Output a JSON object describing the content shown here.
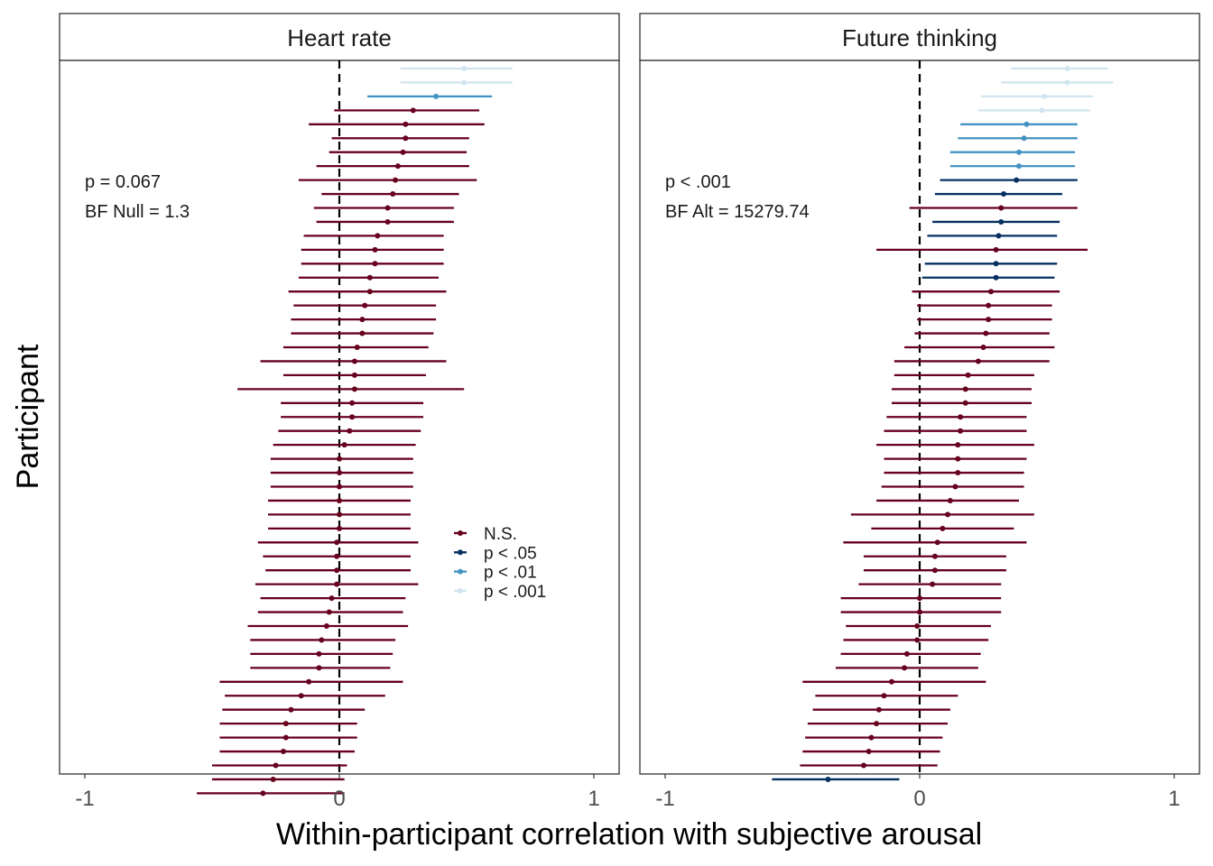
{
  "chart_data": {
    "type": "forest",
    "xlabel": "Within-participant correlation with subjective arousal",
    "ylabel": "Participant",
    "xlim": [
      -1,
      1
    ],
    "xticks": [
      "-1",
      "0",
      "1"
    ],
    "reference_line": 0,
    "legend": {
      "placement": "inside-left-panel",
      "entries": [
        {
          "label": "N.S.",
          "color": "#67001f"
        },
        {
          "label": "p < .05",
          "color": "#053061"
        },
        {
          "label": "p < .01",
          "color": "#4393c3"
        },
        {
          "label": "p < .001",
          "color": "#d1e5f0"
        }
      ]
    },
    "panels": [
      {
        "title": "Heart rate",
        "annotation": [
          "p = 0.067",
          "BF Null = 1.3"
        ],
        "rows": [
          {
            "est": 0.49,
            "lo": 0.24,
            "hi": 0.68,
            "sig": "p < .001"
          },
          {
            "est": 0.49,
            "lo": 0.24,
            "hi": 0.68,
            "sig": "p < .001"
          },
          {
            "est": 0.38,
            "lo": 0.11,
            "hi": 0.6,
            "sig": "p < .01"
          },
          {
            "est": 0.29,
            "lo": -0.02,
            "hi": 0.55,
            "sig": "N.S."
          },
          {
            "est": 0.26,
            "lo": -0.12,
            "hi": 0.57,
            "sig": "N.S."
          },
          {
            "est": 0.26,
            "lo": -0.03,
            "hi": 0.51,
            "sig": "N.S."
          },
          {
            "est": 0.25,
            "lo": -0.04,
            "hi": 0.5,
            "sig": "N.S."
          },
          {
            "est": 0.23,
            "lo": -0.09,
            "hi": 0.51,
            "sig": "N.S."
          },
          {
            "est": 0.22,
            "lo": -0.16,
            "hi": 0.54,
            "sig": "N.S."
          },
          {
            "est": 0.21,
            "lo": -0.07,
            "hi": 0.47,
            "sig": "N.S."
          },
          {
            "est": 0.19,
            "lo": -0.1,
            "hi": 0.45,
            "sig": "N.S."
          },
          {
            "est": 0.19,
            "lo": -0.09,
            "hi": 0.45,
            "sig": "N.S."
          },
          {
            "est": 0.15,
            "lo": -0.14,
            "hi": 0.41,
            "sig": "N.S."
          },
          {
            "est": 0.14,
            "lo": -0.15,
            "hi": 0.41,
            "sig": "N.S."
          },
          {
            "est": 0.14,
            "lo": -0.15,
            "hi": 0.41,
            "sig": "N.S."
          },
          {
            "est": 0.12,
            "lo": -0.16,
            "hi": 0.39,
            "sig": "N.S."
          },
          {
            "est": 0.12,
            "lo": -0.2,
            "hi": 0.42,
            "sig": "N.S."
          },
          {
            "est": 0.1,
            "lo": -0.18,
            "hi": 0.38,
            "sig": "N.S."
          },
          {
            "est": 0.09,
            "lo": -0.19,
            "hi": 0.38,
            "sig": "N.S."
          },
          {
            "est": 0.09,
            "lo": -0.19,
            "hi": 0.37,
            "sig": "N.S."
          },
          {
            "est": 0.07,
            "lo": -0.22,
            "hi": 0.35,
            "sig": "N.S."
          },
          {
            "est": 0.06,
            "lo": -0.31,
            "hi": 0.42,
            "sig": "N.S."
          },
          {
            "est": 0.06,
            "lo": -0.22,
            "hi": 0.34,
            "sig": "N.S."
          },
          {
            "est": 0.06,
            "lo": -0.4,
            "hi": 0.49,
            "sig": "N.S."
          },
          {
            "est": 0.05,
            "lo": -0.23,
            "hi": 0.33,
            "sig": "N.S."
          },
          {
            "est": 0.05,
            "lo": -0.23,
            "hi": 0.33,
            "sig": "N.S."
          },
          {
            "est": 0.04,
            "lo": -0.24,
            "hi": 0.32,
            "sig": "N.S."
          },
          {
            "est": 0.02,
            "lo": -0.26,
            "hi": 0.3,
            "sig": "N.S."
          },
          {
            "est": 0.0,
            "lo": -0.27,
            "hi": 0.29,
            "sig": "N.S."
          },
          {
            "est": 0.0,
            "lo": -0.27,
            "hi": 0.29,
            "sig": "N.S."
          },
          {
            "est": 0.0,
            "lo": -0.27,
            "hi": 0.29,
            "sig": "N.S."
          },
          {
            "est": 0.0,
            "lo": -0.28,
            "hi": 0.28,
            "sig": "N.S."
          },
          {
            "est": 0.0,
            "lo": -0.28,
            "hi": 0.28,
            "sig": "N.S."
          },
          {
            "est": 0.0,
            "lo": -0.28,
            "hi": 0.28,
            "sig": "N.S."
          },
          {
            "est": -0.01,
            "lo": -0.32,
            "hi": 0.31,
            "sig": "N.S."
          },
          {
            "est": -0.01,
            "lo": -0.3,
            "hi": 0.28,
            "sig": "N.S."
          },
          {
            "est": -0.01,
            "lo": -0.29,
            "hi": 0.28,
            "sig": "N.S."
          },
          {
            "est": -0.01,
            "lo": -0.33,
            "hi": 0.31,
            "sig": "N.S."
          },
          {
            "est": -0.03,
            "lo": -0.31,
            "hi": 0.26,
            "sig": "N.S."
          },
          {
            "est": -0.04,
            "lo": -0.32,
            "hi": 0.25,
            "sig": "N.S."
          },
          {
            "est": -0.05,
            "lo": -0.36,
            "hi": 0.27,
            "sig": "N.S."
          },
          {
            "est": -0.07,
            "lo": -0.35,
            "hi": 0.22,
            "sig": "N.S."
          },
          {
            "est": -0.08,
            "lo": -0.35,
            "hi": 0.21,
            "sig": "N.S."
          },
          {
            "est": -0.08,
            "lo": -0.35,
            "hi": 0.2,
            "sig": "N.S."
          },
          {
            "est": -0.12,
            "lo": -0.47,
            "hi": 0.25,
            "sig": "N.S."
          },
          {
            "est": -0.15,
            "lo": -0.45,
            "hi": 0.18,
            "sig": "N.S."
          },
          {
            "est": -0.19,
            "lo": -0.46,
            "hi": 0.1,
            "sig": "N.S."
          },
          {
            "est": -0.21,
            "lo": -0.47,
            "hi": 0.07,
            "sig": "N.S."
          },
          {
            "est": -0.21,
            "lo": -0.47,
            "hi": 0.07,
            "sig": "N.S."
          },
          {
            "est": -0.22,
            "lo": -0.47,
            "hi": 0.06,
            "sig": "N.S."
          },
          {
            "est": -0.25,
            "lo": -0.5,
            "hi": 0.03,
            "sig": "N.S."
          },
          {
            "est": -0.26,
            "lo": -0.5,
            "hi": 0.02,
            "sig": "N.S."
          },
          {
            "est": -0.3,
            "lo": -0.56,
            "hi": 0.02,
            "sig": "N.S."
          }
        ]
      },
      {
        "title": "Future thinking",
        "annotation": [
          "p < .001",
          "BF Alt = 15279.74"
        ],
        "rows": [
          {
            "est": 0.58,
            "lo": 0.36,
            "hi": 0.74,
            "sig": "p < .001"
          },
          {
            "est": 0.58,
            "lo": 0.32,
            "hi": 0.76,
            "sig": "p < .001"
          },
          {
            "est": 0.49,
            "lo": 0.24,
            "hi": 0.68,
            "sig": "p < .001"
          },
          {
            "est": 0.48,
            "lo": 0.23,
            "hi": 0.67,
            "sig": "p < .001"
          },
          {
            "est": 0.42,
            "lo": 0.16,
            "hi": 0.62,
            "sig": "p < .01"
          },
          {
            "est": 0.41,
            "lo": 0.15,
            "hi": 0.62,
            "sig": "p < .01"
          },
          {
            "est": 0.39,
            "lo": 0.12,
            "hi": 0.61,
            "sig": "p < .01"
          },
          {
            "est": 0.39,
            "lo": 0.12,
            "hi": 0.61,
            "sig": "p < .01"
          },
          {
            "est": 0.38,
            "lo": 0.08,
            "hi": 0.62,
            "sig": "p < .05"
          },
          {
            "est": 0.33,
            "lo": 0.06,
            "hi": 0.56,
            "sig": "p < .05"
          },
          {
            "est": 0.32,
            "lo": -0.04,
            "hi": 0.62,
            "sig": "N.S."
          },
          {
            "est": 0.32,
            "lo": 0.05,
            "hi": 0.55,
            "sig": "p < .05"
          },
          {
            "est": 0.31,
            "lo": 0.03,
            "hi": 0.54,
            "sig": "p < .05"
          },
          {
            "est": 0.3,
            "lo": -0.17,
            "hi": 0.66,
            "sig": "N.S."
          },
          {
            "est": 0.3,
            "lo": 0.02,
            "hi": 0.54,
            "sig": "p < .05"
          },
          {
            "est": 0.3,
            "lo": 0.01,
            "hi": 0.53,
            "sig": "p < .05"
          },
          {
            "est": 0.28,
            "lo": -0.03,
            "hi": 0.55,
            "sig": "N.S."
          },
          {
            "est": 0.27,
            "lo": -0.01,
            "hi": 0.52,
            "sig": "N.S."
          },
          {
            "est": 0.27,
            "lo": -0.01,
            "hi": 0.52,
            "sig": "N.S."
          },
          {
            "est": 0.26,
            "lo": -0.02,
            "hi": 0.51,
            "sig": "N.S."
          },
          {
            "est": 0.25,
            "lo": -0.06,
            "hi": 0.53,
            "sig": "N.S."
          },
          {
            "est": 0.23,
            "lo": -0.1,
            "hi": 0.51,
            "sig": "N.S."
          },
          {
            "est": 0.19,
            "lo": -0.1,
            "hi": 0.45,
            "sig": "N.S."
          },
          {
            "est": 0.18,
            "lo": -0.11,
            "hi": 0.44,
            "sig": "N.S."
          },
          {
            "est": 0.18,
            "lo": -0.11,
            "hi": 0.44,
            "sig": "N.S."
          },
          {
            "est": 0.16,
            "lo": -0.13,
            "hi": 0.42,
            "sig": "N.S."
          },
          {
            "est": 0.16,
            "lo": -0.14,
            "hi": 0.42,
            "sig": "N.S."
          },
          {
            "est": 0.15,
            "lo": -0.17,
            "hi": 0.45,
            "sig": "N.S."
          },
          {
            "est": 0.15,
            "lo": -0.14,
            "hi": 0.42,
            "sig": "N.S."
          },
          {
            "est": 0.15,
            "lo": -0.14,
            "hi": 0.41,
            "sig": "N.S."
          },
          {
            "est": 0.14,
            "lo": -0.15,
            "hi": 0.41,
            "sig": "N.S."
          },
          {
            "est": 0.12,
            "lo": -0.17,
            "hi": 0.39,
            "sig": "N.S."
          },
          {
            "est": 0.11,
            "lo": -0.27,
            "hi": 0.45,
            "sig": "N.S."
          },
          {
            "est": 0.09,
            "lo": -0.19,
            "hi": 0.37,
            "sig": "N.S."
          },
          {
            "est": 0.07,
            "lo": -0.3,
            "hi": 0.42,
            "sig": "N.S."
          },
          {
            "est": 0.06,
            "lo": -0.22,
            "hi": 0.34,
            "sig": "N.S."
          },
          {
            "est": 0.06,
            "lo": -0.22,
            "hi": 0.34,
            "sig": "N.S."
          },
          {
            "est": 0.05,
            "lo": -0.24,
            "hi": 0.32,
            "sig": "N.S."
          },
          {
            "est": 0.0,
            "lo": -0.31,
            "hi": 0.32,
            "sig": "N.S."
          },
          {
            "est": 0.0,
            "lo": -0.31,
            "hi": 0.32,
            "sig": "N.S."
          },
          {
            "est": -0.01,
            "lo": -0.29,
            "hi": 0.28,
            "sig": "N.S."
          },
          {
            "est": -0.01,
            "lo": -0.3,
            "hi": 0.27,
            "sig": "N.S."
          },
          {
            "est": -0.05,
            "lo": -0.31,
            "hi": 0.24,
            "sig": "N.S."
          },
          {
            "est": -0.06,
            "lo": -0.33,
            "hi": 0.23,
            "sig": "N.S."
          },
          {
            "est": -0.11,
            "lo": -0.46,
            "hi": 0.26,
            "sig": "N.S."
          },
          {
            "est": -0.14,
            "lo": -0.41,
            "hi": 0.15,
            "sig": "N.S."
          },
          {
            "est": -0.16,
            "lo": -0.42,
            "hi": 0.12,
            "sig": "N.S."
          },
          {
            "est": -0.17,
            "lo": -0.44,
            "hi": 0.11,
            "sig": "N.S."
          },
          {
            "est": -0.19,
            "lo": -0.45,
            "hi": 0.09,
            "sig": "N.S."
          },
          {
            "est": -0.2,
            "lo": -0.46,
            "hi": 0.08,
            "sig": "N.S."
          },
          {
            "est": -0.22,
            "lo": -0.47,
            "hi": 0.07,
            "sig": "N.S."
          },
          {
            "est": -0.36,
            "lo": -0.58,
            "hi": -0.08,
            "sig": "p < .05"
          }
        ]
      }
    ]
  }
}
